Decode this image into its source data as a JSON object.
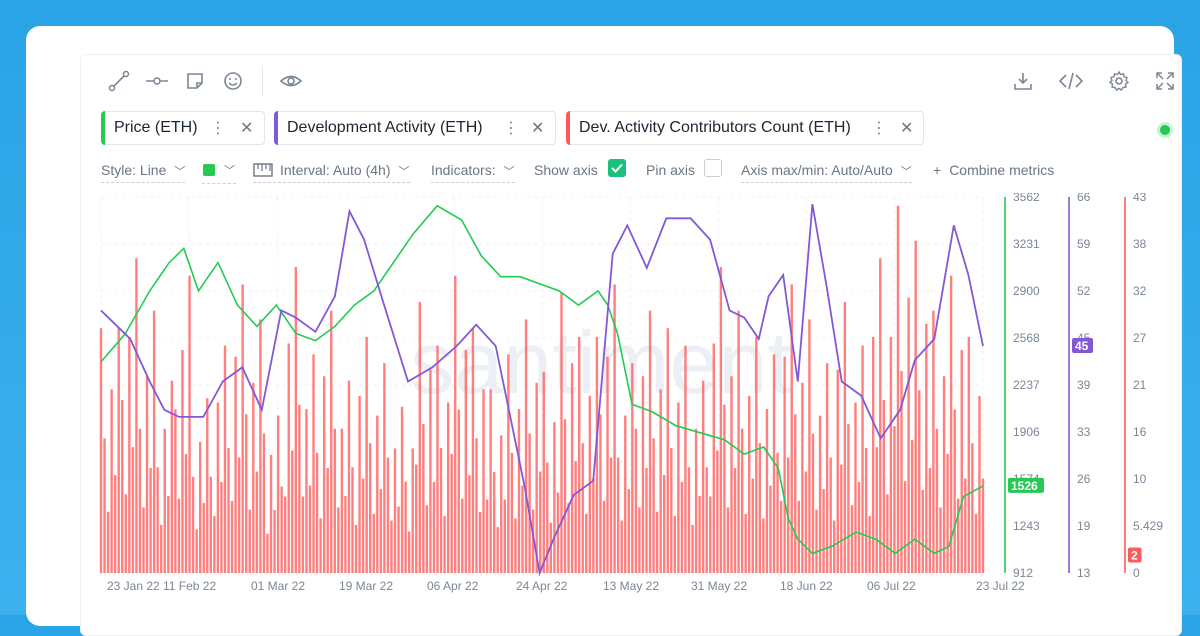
{
  "toolbar": {
    "left_icons": [
      "line-tool-icon",
      "horizontal-ray-icon",
      "sticky-note-icon",
      "emoji-icon",
      "eye-icon"
    ],
    "right_icons": [
      "download-icon",
      "embed-code-icon",
      "settings-gear-icon",
      "fullscreen-icon"
    ]
  },
  "metrics": [
    {
      "label": "Price (ETH)",
      "color": "#26c953"
    },
    {
      "label": "Development Activity (ETH)",
      "color": "#8358d6"
    },
    {
      "label": "Dev. Activity Contributors Count (ETH)",
      "color": "#ff5b5b"
    }
  ],
  "options": {
    "style": "Style: Line",
    "interval": "Interval: Auto (4h)",
    "indicators": "Indicators:",
    "show_axis": "Show axis",
    "show_axis_checked": true,
    "pin_axis": "Pin axis",
    "pin_axis_checked": false,
    "axis_maxmin": "Axis max/min: Auto/Auto",
    "combine": "Combine metrics",
    "color_swatch": "#26c953"
  },
  "chart_data": {
    "type": "line",
    "watermark": "santiment",
    "x_tick_labels": [
      "23 Jan 22",
      "11 Feb 22",
      "01 Mar 22",
      "19 Mar 22",
      "06 Apr 22",
      "24 Apr 22",
      "13 May 22",
      "31 May 22",
      "18 Jun 22",
      "06 Jul 22",
      "23 Jul 22"
    ],
    "x_range": [
      "2022-01-23",
      "2022-07-23"
    ],
    "axes": [
      {
        "name": "price",
        "color": "#26c953",
        "ticks": [
          "3562",
          "3231",
          "2900",
          "2568",
          "2237",
          "1906",
          "1574",
          "1243",
          "912"
        ],
        "range": [
          912,
          3562
        ],
        "last_value_badge": "1526"
      },
      {
        "name": "dev_activity",
        "color": "#8358d6",
        "ticks": [
          "66",
          "59",
          "52",
          "45",
          "39",
          "33",
          "26",
          "19",
          "13"
        ],
        "range": [
          13,
          66
        ],
        "last_value_badge": "45"
      },
      {
        "name": "contributors",
        "color": "#ff5b5b",
        "ticks": [
          "43",
          "38",
          "32",
          "27",
          "21",
          "16",
          "10",
          "5.429",
          "0"
        ],
        "range": [
          0,
          43
        ],
        "last_value_badge": "2"
      }
    ],
    "series": [
      {
        "name": "Price (ETH)",
        "type": "line",
        "color": "#26c953",
        "x": [
          "2022-01-23",
          "2022-01-28",
          "2022-02-02",
          "2022-02-06",
          "2022-02-09",
          "2022-02-12",
          "2022-02-16",
          "2022-02-20",
          "2022-02-24",
          "2022-02-28",
          "2022-03-04",
          "2022-03-08",
          "2022-03-12",
          "2022-03-16",
          "2022-03-20",
          "2022-03-24",
          "2022-03-28",
          "2022-04-02",
          "2022-04-07",
          "2022-04-11",
          "2022-04-15",
          "2022-04-19",
          "2022-04-23",
          "2022-04-27",
          "2022-05-01",
          "2022-05-05",
          "2022-05-07",
          "2022-05-09",
          "2022-05-12",
          "2022-05-16",
          "2022-05-21",
          "2022-05-26",
          "2022-05-31",
          "2022-06-04",
          "2022-06-08",
          "2022-06-11",
          "2022-06-13",
          "2022-06-15",
          "2022-06-18",
          "2022-06-22",
          "2022-06-27",
          "2022-07-01",
          "2022-07-05",
          "2022-07-09",
          "2022-07-13",
          "2022-07-16",
          "2022-07-19",
          "2022-07-23"
        ],
        "y": [
          2400,
          2600,
          2900,
          3100,
          3200,
          2900,
          3100,
          2800,
          2650,
          2800,
          2600,
          2550,
          2650,
          2800,
          2900,
          3100,
          3300,
          3500,
          3400,
          3150,
          3000,
          3000,
          2950,
          2900,
          2800,
          2900,
          2800,
          2600,
          2100,
          2050,
          1950,
          1900,
          1850,
          1750,
          1800,
          1650,
          1300,
          1150,
          1050,
          1100,
          1200,
          1150,
          1050,
          1150,
          1050,
          1100,
          1450,
          1526
        ]
      },
      {
        "name": "Development Activity (ETH)",
        "type": "line",
        "color": "#8358d6",
        "x": [
          "2022-01-23",
          "2022-01-26",
          "2022-01-29",
          "2022-02-02",
          "2022-02-05",
          "2022-02-08",
          "2022-02-13",
          "2022-02-17",
          "2022-02-21",
          "2022-02-25",
          "2022-03-01",
          "2022-03-04",
          "2022-03-08",
          "2022-03-12",
          "2022-03-15",
          "2022-03-18",
          "2022-03-22",
          "2022-03-27",
          "2022-04-01",
          "2022-04-06",
          "2022-04-10",
          "2022-04-14",
          "2022-04-17",
          "2022-04-20",
          "2022-04-23",
          "2022-04-26",
          "2022-04-30",
          "2022-05-04",
          "2022-05-08",
          "2022-05-11",
          "2022-05-15",
          "2022-05-19",
          "2022-05-24",
          "2022-05-28",
          "2022-06-01",
          "2022-06-04",
          "2022-06-07",
          "2022-06-09",
          "2022-06-12",
          "2022-06-15",
          "2022-06-18",
          "2022-06-21",
          "2022-06-24",
          "2022-06-28",
          "2022-07-02",
          "2022-07-06",
          "2022-07-09",
          "2022-07-13",
          "2022-07-17",
          "2022-07-20",
          "2022-07-23"
        ],
        "y": [
          50,
          48,
          46,
          40,
          36,
          35,
          35,
          40,
          42,
          36,
          50,
          49,
          47,
          52,
          64,
          60,
          51,
          40,
          42,
          45,
          48,
          45,
          35,
          25,
          13,
          18,
          24,
          26,
          58,
          62,
          56,
          63,
          63,
          60,
          50,
          49,
          46,
          52,
          55,
          40,
          65,
          53,
          40,
          38,
          32,
          36,
          43,
          46,
          62,
          55,
          45
        ]
      },
      {
        "name": "Dev. Activity Contributors Count (ETH)",
        "type": "bar",
        "color": "#ff5b5b",
        "note_values": "daily cycling values oscillating between 0 and about 42",
        "x_start": "2022-01-23",
        "x_end": "2022-07-23",
        "y_peaks": [
          28,
          36,
          30,
          22,
          34,
          20,
          26,
          33,
          29,
          18,
          35,
          25,
          30,
          22,
          27,
          24,
          19,
          31,
          26,
          34,
          28,
          21,
          25,
          29,
          23,
          32,
          27,
          33,
          24,
          30,
          28,
          26,
          22,
          35,
          30,
          27,
          25,
          33,
          29,
          24,
          31,
          26,
          36,
          42,
          38,
          30,
          34,
          27
        ]
      }
    ]
  }
}
